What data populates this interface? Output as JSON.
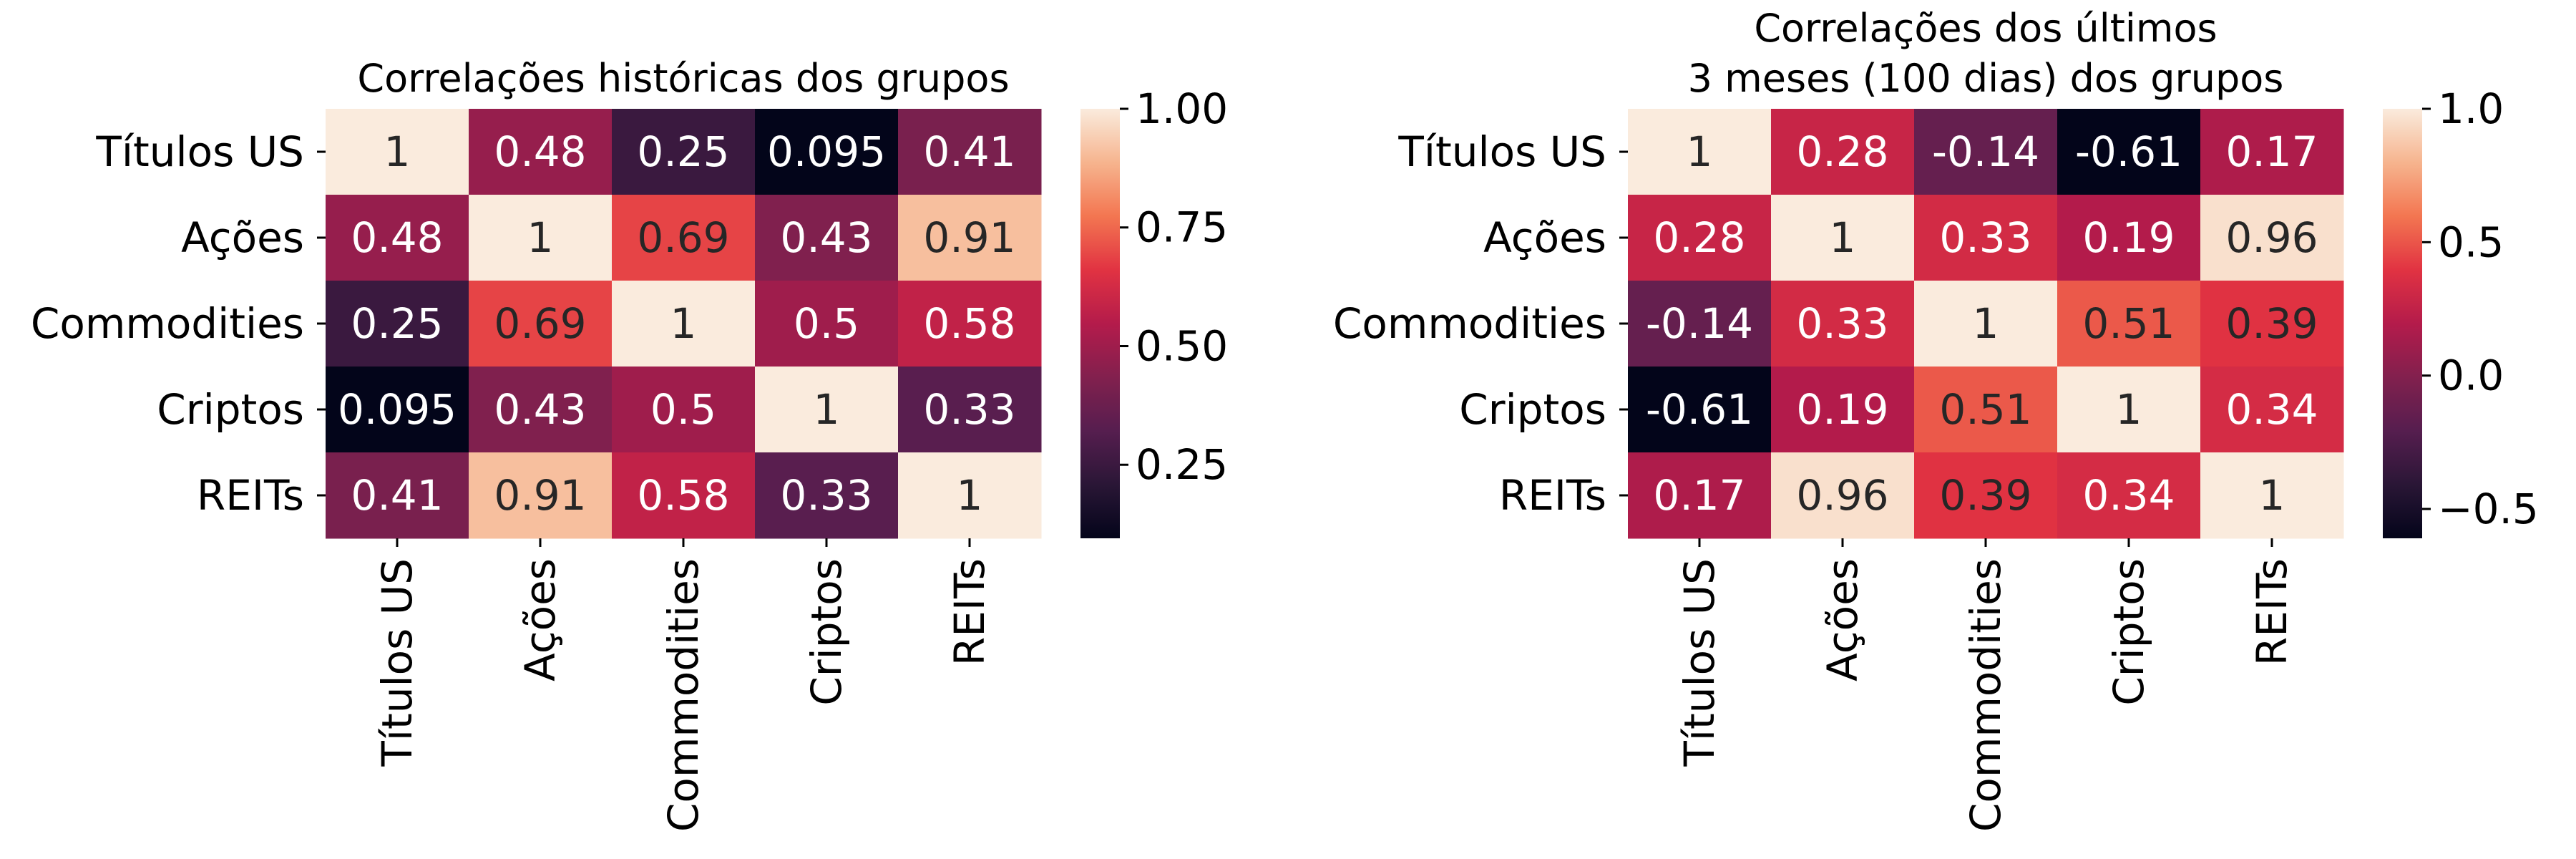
{
  "chart_data": [
    {
      "type": "heatmap",
      "title_lines": [
        "Correlações históricas dos grupos"
      ],
      "xlabel": "",
      "ylabel": "",
      "rows": [
        "Títulos US",
        "Ações",
        "Commodities",
        "Criptos",
        "REITs"
      ],
      "cols": [
        "Títulos US",
        "Ações",
        "Commodities",
        "Criptos",
        "REITs"
      ],
      "values": [
        [
          1,
          0.48,
          0.25,
          0.095,
          0.41
        ],
        [
          0.48,
          1,
          0.69,
          0.43,
          0.91
        ],
        [
          0.25,
          0.69,
          1,
          0.5,
          0.58
        ],
        [
          0.095,
          0.43,
          0.5,
          1,
          0.33
        ],
        [
          0.41,
          0.91,
          0.58,
          0.33,
          1
        ]
      ],
      "labels": [
        [
          "1",
          "0.48",
          "0.25",
          "0.095",
          "0.41"
        ],
        [
          "0.48",
          "1",
          "0.69",
          "0.43",
          "0.91"
        ],
        [
          "0.25",
          "0.69",
          "1",
          "0.5",
          "0.58"
        ],
        [
          "0.095",
          "0.43",
          "0.5",
          "1",
          "0.33"
        ],
        [
          "0.41",
          "0.91",
          "0.58",
          "0.33",
          "1"
        ]
      ],
      "colorbar": {
        "range": [
          0.095,
          1.0
        ],
        "ticks": [
          0.25,
          0.5,
          0.75,
          1.0
        ],
        "tick_labels": [
          "0.25",
          "0.50",
          "0.75",
          "1.00"
        ]
      },
      "colormap": "rocket"
    },
    {
      "type": "heatmap",
      "title_lines": [
        "Correlações dos últimos",
        "3 meses (100 dias) dos grupos"
      ],
      "xlabel": "",
      "ylabel": "",
      "rows": [
        "Títulos US",
        "Ações",
        "Commodities",
        "Criptos",
        "REITs"
      ],
      "cols": [
        "Títulos US",
        "Ações",
        "Commodities",
        "Criptos",
        "REITs"
      ],
      "values": [
        [
          1,
          0.28,
          -0.14,
          -0.61,
          0.17
        ],
        [
          0.28,
          1,
          0.33,
          0.19,
          0.96
        ],
        [
          -0.14,
          0.33,
          1,
          0.51,
          0.39
        ],
        [
          -0.61,
          0.19,
          0.51,
          1,
          0.34
        ],
        [
          0.17,
          0.96,
          0.39,
          0.34,
          1
        ]
      ],
      "labels": [
        [
          "1",
          "0.28",
          "-0.14",
          "-0.61",
          "0.17"
        ],
        [
          "0.28",
          "1",
          "0.33",
          "0.19",
          "0.96"
        ],
        [
          "-0.14",
          "0.33",
          "1",
          "0.51",
          "0.39"
        ],
        [
          "-0.61",
          "0.19",
          "0.51",
          "1",
          "0.34"
        ],
        [
          "0.17",
          "0.96",
          "0.39",
          "0.34",
          "1"
        ]
      ],
      "colorbar": {
        "range": [
          -0.61,
          1.0
        ],
        "ticks": [
          -0.5,
          0.0,
          0.5,
          1.0
        ],
        "tick_labels": [
          "−0.5",
          "0.0",
          "0.5",
          "1.0"
        ]
      },
      "colormap": "rocket"
    }
  ],
  "colors": {
    "rocket_stops": [
      "#03051a",
      "#2a1636",
      "#561e4f",
      "#82204e",
      "#b41b4b",
      "#e13342",
      "#f37651",
      "#f6b48e",
      "#faebdd"
    ],
    "dark_text": "#262626",
    "light_text": "#ffffff"
  }
}
